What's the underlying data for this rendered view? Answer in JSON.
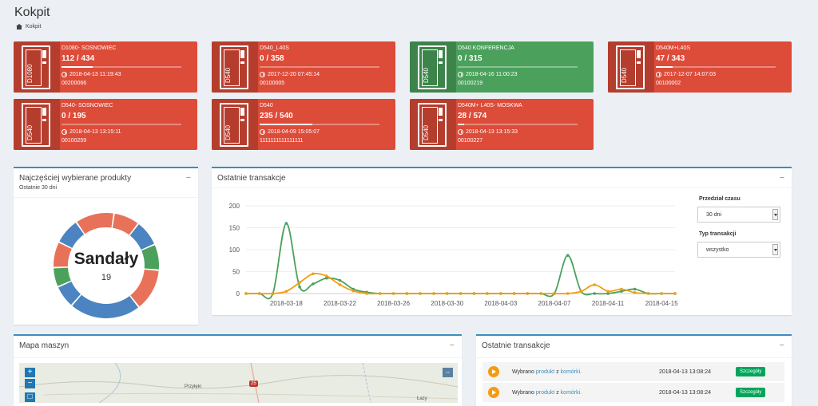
{
  "page": {
    "title": "Kokpit",
    "breadcrumb": "Kokpit"
  },
  "machines": [
    {
      "name": "D1080- SOSNOWIEC",
      "count": "112 / 434",
      "fill": 0.26,
      "date": "2018-04-13 11:19:43",
      "serial": "00200066",
      "model": "D1080",
      "status": "red"
    },
    {
      "name": "D540_L40S",
      "count": "0 / 358",
      "fill": 0.0,
      "date": "2017-12-20 07:45:14",
      "serial": "00100005",
      "model": "D540",
      "status": "red"
    },
    {
      "name": "D540 KONFERENCJA",
      "count": "0 / 315",
      "fill": 0.0,
      "date": "2018-04-16 11:00:23",
      "serial": "00100219",
      "model": "D540",
      "status": "green"
    },
    {
      "name": "D540M+L40S",
      "count": "47 / 343",
      "fill": 0.14,
      "date": "2017-12-07 14:07:03",
      "serial": "00100002",
      "model": "D540",
      "status": "red"
    },
    {
      "name": "D540- SOSNOWIEC",
      "count": "0 / 195",
      "fill": 0.0,
      "date": "2018-04-13 13:15:11",
      "serial": "00100259",
      "model": "D540",
      "status": "red"
    },
    {
      "name": "D540",
      "count": "235 / 540",
      "fill": 0.44,
      "date": "2018-04-09 15:05:07",
      "serial": "1111111111111111",
      "model": "D540",
      "status": "red"
    },
    {
      "name": "D540M+ L40S- MOSKWA",
      "count": "28 / 574",
      "fill": 0.05,
      "date": "2018-04-13 13:15:33",
      "serial": "00100227",
      "model": "D540",
      "status": "red"
    }
  ],
  "top_products": {
    "title": "Najczęściej wybierane produkty",
    "subtitle": "Ostatnie 30 dni",
    "center_label": "Sandały",
    "center_value": "19",
    "segments": [
      {
        "color": "#e8715a",
        "share": 0.08
      },
      {
        "color": "#4b84c0",
        "share": 0.08
      },
      {
        "color": "#4ba15b",
        "share": 0.08
      },
      {
        "color": "#e8715a",
        "share": 0.13
      },
      {
        "color": "#4b84c0",
        "share": 0.22
      },
      {
        "color": "#4b84c0",
        "share": 0.07
      },
      {
        "color": "#4ba15b",
        "share": 0.06
      },
      {
        "color": "#e8715a",
        "share": 0.08
      },
      {
        "color": "#4b84c0",
        "share": 0.08
      },
      {
        "color": "#e8715a",
        "share": 0.12
      }
    ]
  },
  "transactions_chart": {
    "title": "Ostatnie transakcje",
    "period_label": "Przedział czasu",
    "period_value": "30 dni",
    "type_label": "Typ transakcji",
    "type_value": "wszystko"
  },
  "chart_data": {
    "type": "line",
    "x_ticks": [
      "2018-03-18",
      "2018-03-22",
      "2018-03-26",
      "2018-03-30",
      "2018-04-03",
      "2018-04-07",
      "2018-04-11",
      "2018-04-15"
    ],
    "ylim": [
      0,
      200
    ],
    "y_ticks": [
      "200",
      "150",
      "100",
      "50",
      "0"
    ],
    "x": [
      "2018-03-15",
      "2018-03-16",
      "2018-03-17",
      "2018-03-18",
      "2018-03-19",
      "2018-03-20",
      "2018-03-21",
      "2018-03-22",
      "2018-03-23",
      "2018-03-24",
      "2018-03-25",
      "2018-03-26",
      "2018-03-27",
      "2018-03-28",
      "2018-03-29",
      "2018-03-30",
      "2018-03-31",
      "2018-04-01",
      "2018-04-02",
      "2018-04-03",
      "2018-04-04",
      "2018-04-05",
      "2018-04-06",
      "2018-04-07",
      "2018-04-08",
      "2018-04-09",
      "2018-04-10",
      "2018-04-11",
      "2018-04-12",
      "2018-04-13",
      "2018-04-14",
      "2018-04-15",
      "2018-04-16"
    ],
    "series": [
      {
        "color": "#4ba15b",
        "values": [
          0,
          0,
          0,
          160,
          15,
          22,
          35,
          30,
          10,
          3,
          0,
          0,
          0,
          0,
          0,
          0,
          0,
          0,
          0,
          0,
          0,
          0,
          0,
          0,
          87,
          5,
          0,
          0,
          5,
          10,
          0,
          0,
          0
        ]
      },
      {
        "color": "#f39c12",
        "values": [
          0,
          0,
          0,
          5,
          25,
          45,
          40,
          20,
          6,
          0,
          0,
          0,
          0,
          0,
          0,
          0,
          0,
          0,
          0,
          0,
          0,
          0,
          0,
          0,
          0,
          5,
          20,
          5,
          10,
          2,
          0,
          0,
          0
        ]
      }
    ]
  },
  "map_box": {
    "title": "Mapa maszyn",
    "place1": "Przyłęki",
    "place2": "Łazy",
    "road": "25"
  },
  "recent": {
    "title": "Ostatnie transakcje",
    "rows": [
      {
        "prefix": "Wybrano",
        "product": "produkt",
        "mid": "z",
        "source": "komórki.",
        "time": "2018-04-13 13:08:24",
        "btn": "Szczegóły"
      },
      {
        "prefix": "Wybrano",
        "product": "produkt",
        "mid": "z",
        "source": "komórki.",
        "time": "2018-04-13 13:08:24",
        "btn": "Szczegóły"
      }
    ]
  }
}
